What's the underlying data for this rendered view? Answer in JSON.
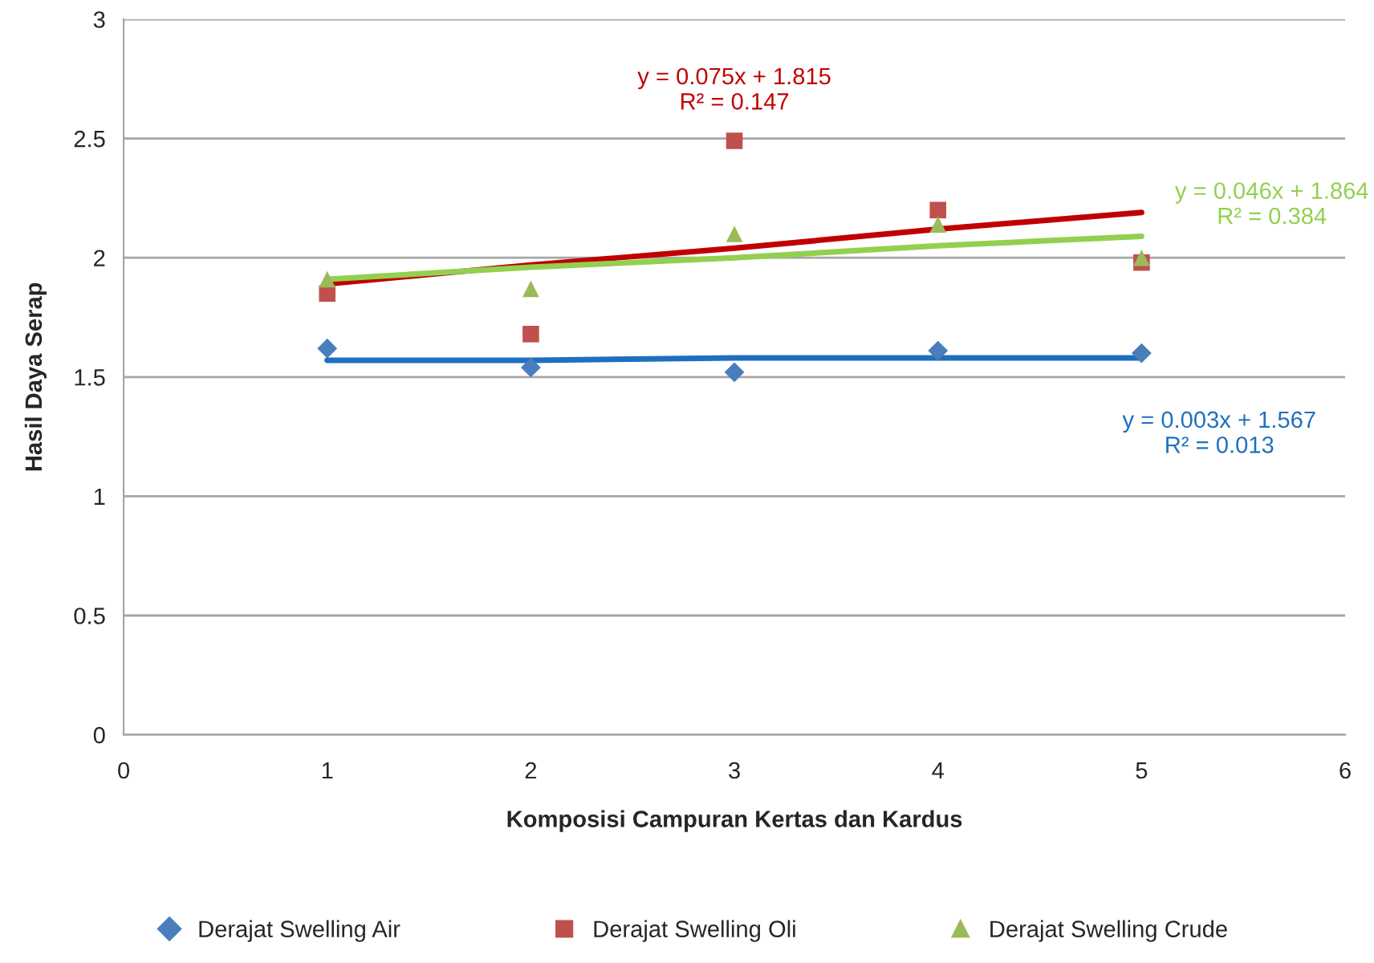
{
  "chart_data": {
    "type": "scatter",
    "xlabel": "Komposisi Campuran Kertas dan Kardus",
    "ylabel": "Hasil Daya Serap",
    "x": [
      1,
      2,
      3,
      4,
      5
    ],
    "series": [
      {
        "name": "Derajat Swelling Air",
        "color": "#4a7ebb",
        "marker": "diamond",
        "values": [
          1.62,
          1.54,
          1.52,
          1.61,
          1.6
        ]
      },
      {
        "name": "Derajat Swelling Oli",
        "color": "#c0504d",
        "marker": "square",
        "values": [
          1.85,
          1.68,
          2.49,
          2.2,
          1.98
        ]
      },
      {
        "name": "Derajat Swelling Crude",
        "color": "#9bbb59",
        "marker": "triangle",
        "values": [
          1.91,
          1.87,
          2.1,
          2.14,
          2.0
        ]
      },
      {
        "type": "line",
        "color": "#1f6fbf",
        "marker": "none",
        "values": [
          1.57,
          1.57,
          1.58,
          1.58,
          1.58
        ]
      },
      {
        "type": "line",
        "color": "#c00000",
        "marker": "none",
        "values": [
          1.89,
          1.97,
          2.04,
          2.12,
          2.19
        ]
      },
      {
        "type": "line",
        "color": "#92d050",
        "marker": "none",
        "values": [
          1.91,
          1.96,
          2.0,
          2.05,
          2.09
        ]
      }
    ],
    "annotations": [
      "y = 0.003x + 1.567\nR² = 0.013",
      "y = 0.075x + 1.815\nR² = 0.147",
      "y = 0.046x + 1.864\nR² = 0.384"
    ],
    "xlim": [
      0,
      6
    ],
    "xticks": [
      0,
      1,
      2,
      3,
      4,
      5,
      6
    ],
    "ylim": [
      0,
      3
    ],
    "yticks": [
      0,
      0.5,
      1,
      1.5,
      2,
      2.5,
      3
    ],
    "grid": "y",
    "legend": "bottom"
  }
}
